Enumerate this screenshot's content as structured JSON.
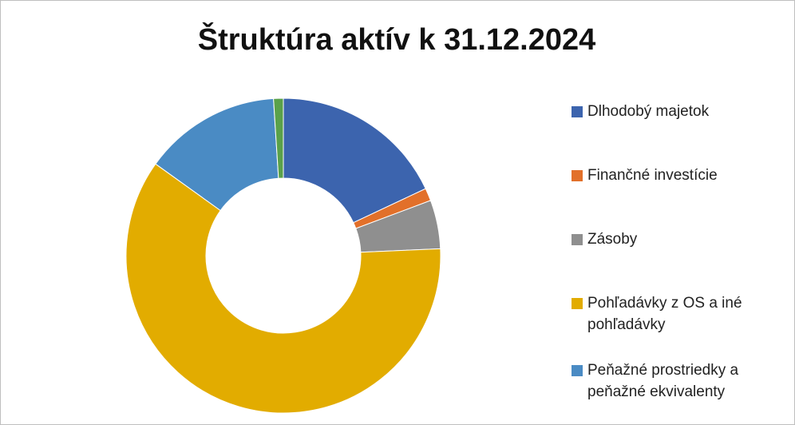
{
  "chart_data": {
    "type": "donut",
    "title": "Štruktúra aktív k 31.12.2024",
    "categories": [
      "Dlhodobý majetok",
      "Finančné investície",
      "Zásoby",
      "Pohľadávky z OS a iné pohľadávky",
      "Peňažné prostriedky a peňažné ekvivalenty",
      null
    ],
    "values": [
      18,
      1.3,
      5,
      60.6,
      14.1,
      1
    ],
    "colors": [
      "#3c64ae",
      "#e2702a",
      "#8f8f8f",
      "#e2ac00",
      "#4a8bc4",
      "#5aa14a"
    ],
    "legend": "right"
  }
}
